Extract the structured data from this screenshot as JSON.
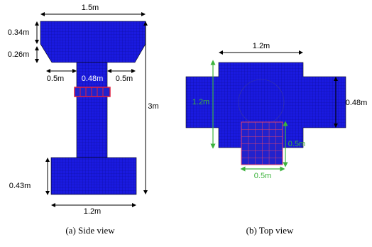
{
  "side_view": {
    "dimensions": {
      "top_width": "1.5m",
      "cap_height": "0.34m",
      "taper_height": "0.26m",
      "left_offset": "0.5m",
      "column_width": "0.48m",
      "right_offset": "0.5m",
      "total_height": "3m",
      "footing_height": "0.43m",
      "footing_width": "1.2m"
    },
    "caption": "(a) Side view"
  },
  "top_view": {
    "dimensions": {
      "width": "1.2m",
      "height": "1.2m",
      "arm_width": "0.48m",
      "patch_height": "0.5m",
      "patch_width": "0.5m"
    },
    "caption": "(b) Top view"
  }
}
